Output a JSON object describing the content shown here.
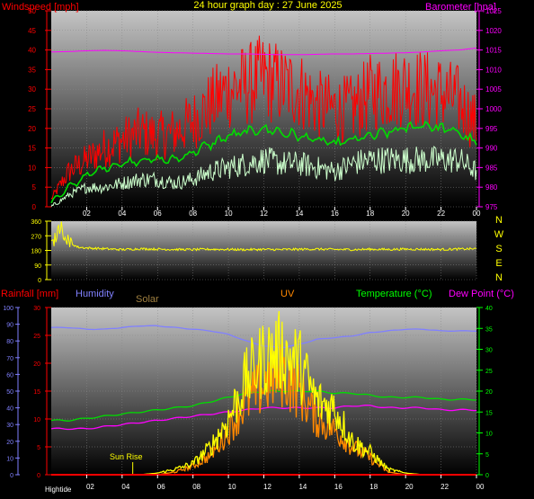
{
  "title": "24 hour graph day : 27 June 2025",
  "colors": {
    "wind_speed": "#ff0000",
    "wind_avg": "#00dd00",
    "wind_lull": "#ccffcc",
    "barometer": "#ff00ff",
    "direction": "#ffff00",
    "humidity": "#8080ff",
    "solar": "#ffff00",
    "uv": "#ff8800",
    "temperature": "#00dd00",
    "dewpoint": "#ff00ff",
    "rainfall": "#ff0000",
    "left_axis_text": "#ff0000",
    "humidity_axis_text": "#8080ff",
    "temp_axis_text": "#00ff00",
    "baro_axis_text": "#ff00ff"
  },
  "chart_data": [
    {
      "type": "line",
      "panel": "wind",
      "ylabel": "Windspeed [mph]",
      "y2label": "Barometer [hpa]",
      "ylim": [
        0,
        50
      ],
      "y2lim": [
        975,
        1025
      ],
      "y_ticks": [
        "0",
        "5",
        "10",
        "15",
        "20",
        "25",
        "30",
        "35",
        "40",
        "45",
        "50"
      ],
      "y2_ticks": [
        "975",
        "980",
        "985",
        "990",
        "995",
        "1000",
        "1005",
        "1010",
        "1015",
        "1020",
        "1025"
      ],
      "x_ticks": [
        "02",
        "04",
        "06",
        "08",
        "10",
        "12",
        "14",
        "16",
        "18",
        "20",
        "22",
        "00"
      ],
      "x_hours": [
        0,
        1,
        2,
        3,
        4,
        5,
        6,
        7,
        8,
        9,
        10,
        11,
        12,
        13,
        14,
        15,
        16,
        17,
        18,
        19,
        20,
        21,
        22,
        23,
        24
      ],
      "series": [
        {
          "key": "gust",
          "values": [
            2,
            9,
            12,
            15,
            17,
            19,
            18,
            19,
            22,
            26,
            30,
            31,
            33,
            31,
            30,
            26,
            25,
            25,
            29,
            30,
            31,
            30,
            29,
            27,
            21
          ]
        },
        {
          "key": "avg",
          "values": [
            1,
            5,
            8,
            10,
            11,
            12,
            12,
            12,
            14,
            16,
            18,
            19,
            20,
            19,
            18,
            17,
            16,
            17,
            18,
            19,
            20,
            21,
            20,
            19,
            16
          ]
        },
        {
          "key": "lull",
          "values": [
            0,
            3,
            5,
            5,
            6,
            7,
            7,
            6,
            7,
            9,
            10,
            11,
            12,
            11,
            11,
            10,
            9,
            11,
            12,
            12,
            12,
            12,
            12,
            12,
            9
          ]
        },
        {
          "key": "baro",
          "axis": "y2",
          "values": [
            1014.5,
            1014.6,
            1014.8,
            1014.9,
            1014.8,
            1014.6,
            1014.4,
            1014.3,
            1014.2,
            1014.1,
            1014.0,
            1014.0,
            1013.9,
            1013.8,
            1013.8,
            1013.9,
            1014.0,
            1014.0,
            1014.1,
            1014.2,
            1014.3,
            1014.5,
            1014.8,
            1015.0,
            1015.5
          ]
        }
      ]
    },
    {
      "type": "line",
      "panel": "direction",
      "direction_labels": [
        "N",
        "W",
        "S",
        "E",
        "N"
      ],
      "ylim": [
        0,
        360
      ],
      "y_ticks": [
        "0",
        "90",
        "180",
        "270",
        "360"
      ],
      "x_hours": [
        0,
        0.5,
        1,
        1.5,
        2,
        3,
        4,
        5,
        6,
        7,
        8,
        9,
        10,
        11,
        12,
        13,
        14,
        15,
        16,
        17,
        18,
        19,
        20,
        21,
        22,
        23,
        24
      ],
      "values": [
        200,
        330,
        230,
        200,
        195,
        190,
        185,
        190,
        188,
        186,
        185,
        187,
        186,
        185,
        186,
        185,
        187,
        188,
        186,
        185,
        187,
        186,
        188,
        187,
        186,
        188,
        190
      ]
    },
    {
      "type": "line",
      "panel": "weather",
      "rainfall_label": "Rainfall [mm]",
      "humidity_label": "Humidity",
      "solar_label": "Solar",
      "uv_label": "UV",
      "temperature_label": "Temperature (°C)",
      "dewpoint_label": "Dew Point (°C)",
      "humidity_ticks": [
        "0",
        "10",
        "20",
        "30",
        "40",
        "50",
        "60",
        "70",
        "80",
        "90",
        "100"
      ],
      "rain_ticks": [
        "0",
        "5",
        "10",
        "15",
        "20",
        "25",
        "30"
      ],
      "temp_ticks": [
        "0",
        "5",
        "10",
        "15",
        "20",
        "25",
        "30",
        "35",
        "40"
      ],
      "humidity_lim": [
        0,
        100
      ],
      "rain_lim": [
        0,
        30
      ],
      "temp_lim": [
        0,
        40
      ],
      "x_ticks": [
        "02",
        "04",
        "06",
        "08",
        "10",
        "12",
        "14",
        "16",
        "18",
        "20",
        "22",
        "00"
      ],
      "annotations": {
        "sunrise": "Sun Rise",
        "hightide": "Hightide"
      },
      "sunrise_hour": 4.6,
      "x_hours": [
        0,
        1,
        2,
        3,
        4,
        5,
        6,
        7,
        8,
        9,
        10,
        11,
        12,
        13,
        14,
        15,
        16,
        17,
        18,
        19,
        20,
        21,
        22,
        23,
        24
      ],
      "series": [
        {
          "key": "humidity",
          "axis": "humidity",
          "values": [
            88,
            88,
            87,
            87,
            88,
            89,
            89,
            88,
            87,
            86,
            84,
            80,
            77,
            76,
            78,
            81,
            82,
            83,
            85,
            86,
            87,
            87,
            86,
            86,
            86
          ]
        },
        {
          "key": "temperature",
          "axis": "temp",
          "values": [
            13,
            13,
            13.5,
            14,
            14.5,
            15,
            15.5,
            16,
            16.5,
            17.5,
            18.5,
            19.5,
            20,
            20,
            20,
            20,
            19.5,
            19.5,
            19,
            18.5,
            18.5,
            18.5,
            18,
            18,
            18
          ]
        },
        {
          "key": "dewpoint",
          "axis": "temp",
          "values": [
            11,
            11,
            11,
            11.5,
            12,
            12.5,
            13,
            13.5,
            14,
            14.5,
            15,
            15.5,
            16,
            16,
            16,
            16,
            16,
            16.5,
            16.5,
            16,
            16,
            16,
            15.5,
            15.5,
            15.5
          ]
        },
        {
          "key": "solar",
          "axis": "rain",
          "values": [
            0,
            0,
            0,
            0,
            0,
            0,
            0.3,
            1,
            2,
            5,
            10,
            17,
            21,
            22,
            20,
            13,
            12,
            6,
            4,
            1,
            0.3,
            0,
            0,
            0,
            0
          ]
        },
        {
          "key": "uv",
          "axis": "rain",
          "values": [
            0,
            0,
            0,
            0,
            0,
            0,
            0,
            0.5,
            1.5,
            3.5,
            8,
            13,
            16,
            18,
            15,
            10,
            8,
            5,
            3,
            0.5,
            0,
            0,
            0,
            0,
            0
          ]
        },
        {
          "key": "rainfall",
          "axis": "rain",
          "values": [
            0,
            0,
            0,
            0,
            0,
            0,
            0,
            0,
            0,
            0,
            0,
            0,
            0,
            0,
            0,
            0,
            0,
            0,
            0,
            0,
            0,
            0,
            0,
            0,
            0
          ]
        }
      ]
    }
  ]
}
